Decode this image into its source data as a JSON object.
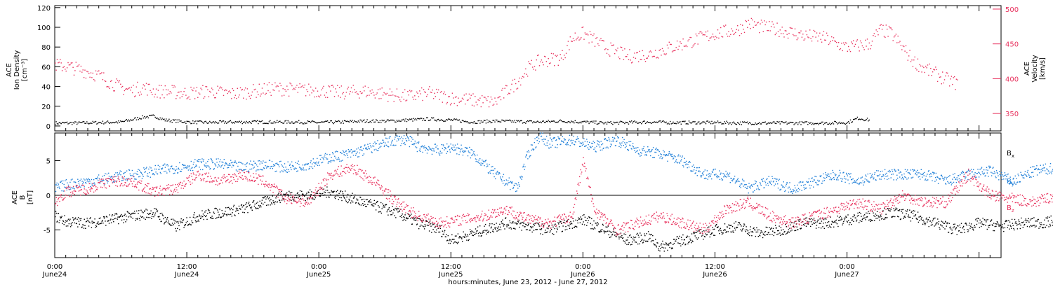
{
  "colors": {
    "black": "#000000",
    "pink": "#e8325e",
    "blue": "#1f7fd8"
  },
  "chart_data": [
    {
      "type": "scatter",
      "panel": "top",
      "ylabel_left_lines": [
        "ACE",
        "Ion Density",
        "[cm⁻³]"
      ],
      "ylabel_right_lines": [
        "ACE",
        "Velocity",
        "[km/s]"
      ],
      "y_left": {
        "min": -5,
        "max": 122,
        "ticks": [
          0,
          20,
          40,
          60,
          80,
          100,
          120
        ]
      },
      "y_right": {
        "min": 325,
        "max": 505,
        "ticks": [
          350,
          400,
          450,
          500
        ]
      },
      "series": [
        {
          "axis": "left",
          "color": "black",
          "points": [
            [
              0,
              3
            ],
            [
              2,
              3
            ],
            [
              4,
              3.5
            ],
            [
              6,
              4
            ],
            [
              8,
              9
            ],
            [
              9,
              10
            ],
            [
              10,
              6
            ],
            [
              12,
              4
            ],
            [
              14,
              3.5
            ],
            [
              16,
              4
            ],
            [
              18,
              4
            ],
            [
              20,
              4
            ],
            [
              22,
              4
            ],
            [
              24,
              3.5
            ],
            [
              26,
              4
            ],
            [
              28,
              5
            ],
            [
              30,
              5
            ],
            [
              32,
              6
            ],
            [
              34,
              7
            ],
            [
              36,
              6
            ],
            [
              38,
              4
            ],
            [
              40,
              5
            ],
            [
              42,
              4.5
            ],
            [
              44,
              4
            ],
            [
              46,
              5
            ],
            [
              48,
              4
            ],
            [
              50,
              3
            ],
            [
              52,
              3.5
            ],
            [
              54,
              4
            ],
            [
              56,
              3.5
            ],
            [
              58,
              3.5
            ],
            [
              60,
              3.5
            ],
            [
              62,
              3
            ],
            [
              64,
              3
            ],
            [
              66,
              3
            ],
            [
              68,
              3
            ],
            [
              70,
              3
            ],
            [
              72,
              3.5
            ],
            [
              73,
              8
            ],
            [
              74,
              6
            ]
          ]
        },
        {
          "axis": "right",
          "color": "pink",
          "points": [
            [
              0,
              420
            ],
            [
              1,
              418
            ],
            [
              2,
              414
            ],
            [
              3,
              410
            ],
            [
              4,
              404
            ],
            [
              5,
              395
            ],
            [
              6,
              387
            ],
            [
              7,
              383
            ],
            [
              8,
              388
            ],
            [
              9,
              382
            ],
            [
              10,
              382
            ],
            [
              12,
              379
            ],
            [
              14,
              382
            ],
            [
              16,
              378
            ],
            [
              18,
              382
            ],
            [
              20,
              386
            ],
            [
              22,
              384
            ],
            [
              24,
              383
            ],
            [
              26,
              380
            ],
            [
              28,
              382
            ],
            [
              30,
              378
            ],
            [
              32,
              374
            ],
            [
              34,
              379
            ],
            [
              36,
              372
            ],
            [
              38,
              369
            ],
            [
              40,
              366
            ],
            [
              41,
              382
            ],
            [
              42,
              395
            ],
            [
              43,
              415
            ],
            [
              44,
              425
            ],
            [
              46,
              430
            ],
            [
              47,
              458
            ],
            [
              48,
              465
            ],
            [
              50,
              445
            ],
            [
              52,
              432
            ],
            [
              54,
              435
            ],
            [
              56,
              445
            ],
            [
              58,
              455
            ],
            [
              60,
              465
            ],
            [
              62,
              470
            ],
            [
              63,
              480
            ],
            [
              64,
              475
            ],
            [
              66,
              470
            ],
            [
              68,
              462
            ],
            [
              70,
              458
            ],
            [
              71,
              450
            ],
            [
              72,
              445
            ],
            [
              74,
              450
            ],
            [
              75,
              470
            ],
            [
              76,
              465
            ],
            [
              77,
              445
            ],
            [
              78,
              425
            ],
            [
              79,
              415
            ],
            [
              80,
              407
            ],
            [
              81,
              399
            ],
            [
              82,
              393
            ]
          ]
        }
      ]
    },
    {
      "type": "scatter",
      "panel": "bottom",
      "ylabel_left_lines": [
        "ACE",
        "B",
        "[nT]"
      ],
      "y_left": {
        "min": -9,
        "max": 9,
        "ticks": [
          -5,
          0,
          5
        ]
      },
      "legend": [
        "Bx",
        "By",
        "Bz"
      ],
      "series": [
        {
          "name": "Bx",
          "color": "black",
          "points": [
            [
              0,
              -3
            ],
            [
              1,
              -3.8
            ],
            [
              3,
              -4
            ],
            [
              5,
              -3.5
            ],
            [
              7,
              -3
            ],
            [
              9,
              -2.5
            ],
            [
              11,
              -4.5
            ],
            [
              13,
              -3
            ],
            [
              15,
              -2.5
            ],
            [
              17,
              -2
            ],
            [
              19,
              -1
            ],
            [
              21,
              0
            ],
            [
              23,
              0
            ],
            [
              25,
              0.5
            ],
            [
              27,
              -0.5
            ],
            [
              29,
              -1.5
            ],
            [
              31,
              -2.5
            ],
            [
              33,
              -4
            ],
            [
              35,
              -5
            ],
            [
              36,
              -6.5
            ],
            [
              37,
              -6
            ],
            [
              39,
              -5
            ],
            [
              41,
              -4
            ],
            [
              43,
              -4.5
            ],
            [
              45,
              -5
            ],
            [
              47,
              -4
            ],
            [
              48,
              -3.5
            ],
            [
              50,
              -5
            ],
            [
              52,
              -6.5
            ],
            [
              54,
              -6
            ],
            [
              55,
              -7.5
            ],
            [
              56,
              -7
            ],
            [
              58,
              -6
            ],
            [
              60,
              -5
            ],
            [
              62,
              -4.5
            ],
            [
              64,
              -5.5
            ],
            [
              66,
              -5
            ],
            [
              68,
              -4
            ],
            [
              70,
              -4
            ],
            [
              72,
              -3.5
            ],
            [
              74,
              -3
            ],
            [
              76,
              -2.5
            ],
            [
              78,
              -3
            ],
            [
              80,
              -4
            ],
            [
              82,
              -5
            ],
            [
              84,
              -4
            ],
            [
              86,
              -4.5
            ],
            [
              88,
              -4
            ],
            [
              90,
              -4
            ],
            [
              92,
              -3
            ],
            [
              93,
              -1.5
            ],
            [
              94,
              0
            ],
            [
              95,
              1
            ]
          ]
        },
        {
          "name": "By",
          "color": "blue",
          "points": [
            [
              0,
              1
            ],
            [
              1,
              1.5
            ],
            [
              3,
              2
            ],
            [
              5,
              2.5
            ],
            [
              7,
              3
            ],
            [
              9,
              3.5
            ],
            [
              11,
              4
            ],
            [
              13,
              4.5
            ],
            [
              15,
              4.5
            ],
            [
              17,
              4
            ],
            [
              19,
              4.5
            ],
            [
              21,
              4
            ],
            [
              23,
              4.5
            ],
            [
              25,
              5.5
            ],
            [
              27,
              6
            ],
            [
              29,
              7
            ],
            [
              31,
              8
            ],
            [
              32,
              8
            ],
            [
              33,
              7
            ],
            [
              35,
              6.5
            ],
            [
              36,
              7
            ],
            [
              38,
              6
            ],
            [
              40,
              3
            ],
            [
              42,
              1
            ],
            [
              43,
              6
            ],
            [
              44,
              8.5
            ],
            [
              45,
              7.5
            ],
            [
              47,
              8
            ],
            [
              49,
              7
            ],
            [
              51,
              8
            ],
            [
              53,
              6.5
            ],
            [
              55,
              6
            ],
            [
              57,
              5
            ],
            [
              59,
              3
            ],
            [
              61,
              3
            ],
            [
              63,
              1
            ],
            [
              65,
              2
            ],
            [
              67,
              1
            ],
            [
              69,
              2
            ],
            [
              71,
              3
            ],
            [
              73,
              2
            ],
            [
              75,
              3
            ],
            [
              77,
              3
            ],
            [
              79,
              3
            ],
            [
              81,
              2
            ],
            [
              83,
              3
            ],
            [
              85,
              3.5
            ],
            [
              87,
              2
            ],
            [
              89,
              3.5
            ],
            [
              91,
              4
            ],
            [
              93,
              4.5
            ],
            [
              95,
              -2
            ]
          ]
        },
        {
          "name": "Bz",
          "color": "pink",
          "points": [
            [
              0,
              -1
            ],
            [
              1,
              0.5
            ],
            [
              3,
              1
            ],
            [
              5,
              2
            ],
            [
              7,
              2
            ],
            [
              9,
              0.5
            ],
            [
              11,
              1
            ],
            [
              13,
              3
            ],
            [
              15,
              2
            ],
            [
              17,
              3
            ],
            [
              19,
              2
            ],
            [
              21,
              -0.5
            ],
            [
              23,
              -1
            ],
            [
              25,
              3
            ],
            [
              27,
              4
            ],
            [
              29,
              2
            ],
            [
              31,
              -1
            ],
            [
              33,
              -3
            ],
            [
              35,
              -4
            ],
            [
              37,
              -3.5
            ],
            [
              39,
              -3
            ],
            [
              41,
              -2
            ],
            [
              43,
              -3.5
            ],
            [
              45,
              -4
            ],
            [
              47,
              -3
            ],
            [
              48,
              5
            ],
            [
              49,
              -2
            ],
            [
              51,
              -5
            ],
            [
              53,
              -4
            ],
            [
              55,
              -3
            ],
            [
              57,
              -4
            ],
            [
              59,
              -5
            ],
            [
              61,
              -2
            ],
            [
              63,
              -1
            ],
            [
              65,
              -3
            ],
            [
              67,
              -4
            ],
            [
              69,
              -3
            ],
            [
              71,
              -2
            ],
            [
              73,
              -1
            ],
            [
              75,
              -2
            ],
            [
              77,
              0
            ],
            [
              79,
              -1
            ],
            [
              81,
              -1
            ],
            [
              83,
              3
            ],
            [
              85,
              0
            ],
            [
              87,
              -0.5
            ],
            [
              89,
              -1
            ],
            [
              91,
              0
            ],
            [
              93,
              2
            ],
            [
              95,
              5.5
            ]
          ]
        }
      ]
    }
  ],
  "xaxis": {
    "title": "hours:minutes, June 23, 2012 - June 27, 2012",
    "min_hours": 0,
    "max_hours": 86,
    "tick_labels": [
      {
        "hour": 0,
        "time": "0:00",
        "date": "June24"
      },
      {
        "hour": 12,
        "time": "12:00",
        "date": "June24"
      },
      {
        "hour": 24,
        "time": "0:00",
        "date": "June25"
      },
      {
        "hour": 36,
        "time": "12:00",
        "date": "June25"
      },
      {
        "hour": 48,
        "time": "0:00",
        "date": "June26"
      },
      {
        "hour": 60,
        "time": "12:00",
        "date": "June26"
      },
      {
        "hour": 72,
        "time": "0:00",
        "date": "June27"
      }
    ]
  }
}
